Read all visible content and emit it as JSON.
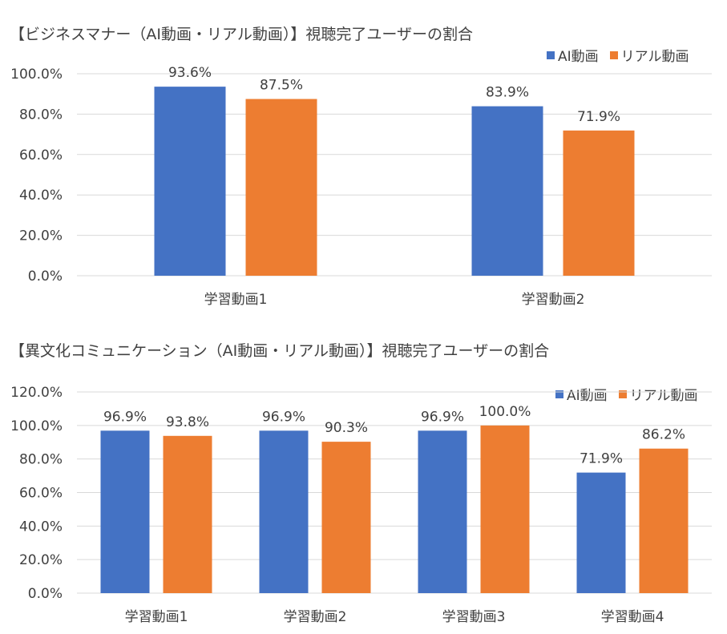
{
  "colors": {
    "ai": "#4472C4",
    "real": "#ED7D31",
    "grid": "#D9D9D9",
    "text": "#404040"
  },
  "chart_data": [
    {
      "type": "bar",
      "title": "【ビジネスマナー（AI動画・リアル動画）】視聴完了ユーザーの割合",
      "categories": [
        "学習動画1",
        "学習動画2"
      ],
      "series": [
        {
          "name": "AI動画",
          "values": [
            93.6,
            83.9
          ]
        },
        {
          "name": "リアル動画",
          "values": [
            87.5,
            71.9
          ]
        }
      ],
      "data_labels": [
        [
          "93.6%",
          "83.9%"
        ],
        [
          "87.5%",
          "71.9%"
        ]
      ],
      "ylim": [
        0,
        100
      ],
      "yticks": [
        "0.0%",
        "20.0%",
        "40.0%",
        "60.0%",
        "80.0%",
        "100.0%"
      ],
      "grid": true,
      "legend_position": "top-right"
    },
    {
      "type": "bar",
      "title": "【異文化コミュニケーション（AI動画・リアル動画）】視聴完了ユーザーの割合",
      "categories": [
        "学習動画1",
        "学習動画2",
        "学習動画3",
        "学習動画4"
      ],
      "series": [
        {
          "name": "AI動画",
          "values": [
            96.9,
            96.9,
            96.9,
            71.9
          ]
        },
        {
          "name": "リアル動画",
          "values": [
            93.8,
            90.3,
            100.0,
            86.2
          ]
        }
      ],
      "data_labels": [
        [
          "96.9%",
          "96.9%",
          "96.9%",
          "71.9%"
        ],
        [
          "93.8%",
          "90.3%",
          "100.0%",
          "86.2%"
        ]
      ],
      "ylim": [
        0,
        120
      ],
      "yticks": [
        "0.0%",
        "20.0%",
        "40.0%",
        "60.0%",
        "80.0%",
        "100.0%",
        "120.0%"
      ],
      "grid": true,
      "legend_position": "top-right"
    }
  ]
}
